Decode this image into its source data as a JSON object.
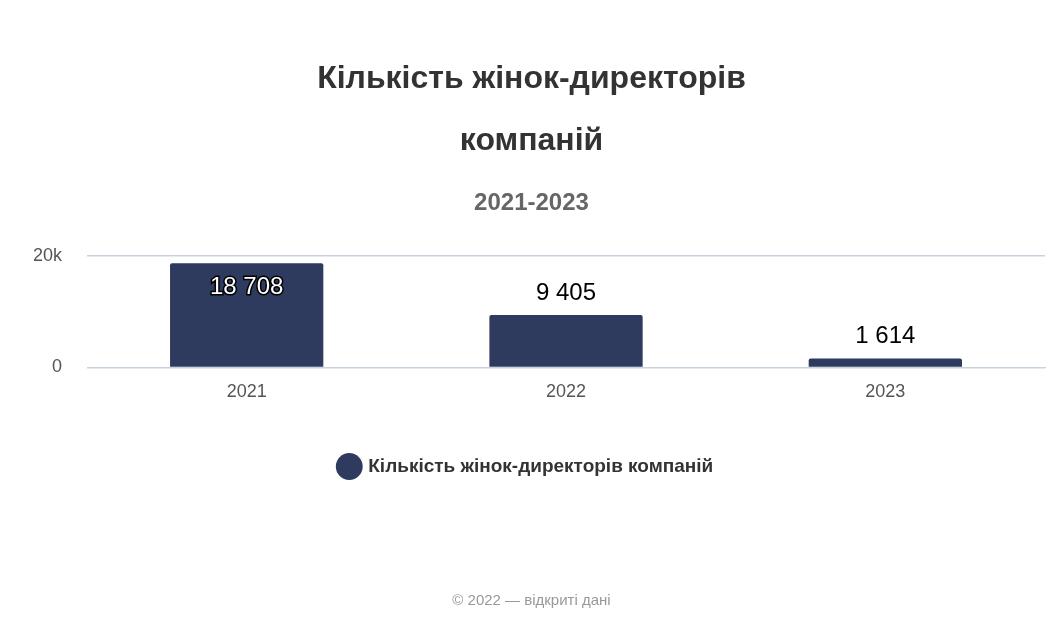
{
  "chart_data": {
    "type": "bar",
    "title": "Кількість жінок-директорів компаній",
    "subtitle": "2021-2023",
    "categories": [
      "2021",
      "2022",
      "2023"
    ],
    "series": [
      {
        "name": "Кількість жінок-директорів компаній",
        "color": "#2e3b5e",
        "values": [
          18708,
          9405,
          1614
        ]
      }
    ],
    "value_labels": [
      "18 708",
      "9 405",
      "1 614"
    ],
    "data_labels": true,
    "ylim": [
      0,
      20000
    ],
    "yticks": [
      0,
      {
        "value": 20000,
        "label": "20k"
      }
    ],
    "grid": "y",
    "legend": "bottom",
    "annotations": [
      "© 2022 — відкриті дані"
    ]
  }
}
